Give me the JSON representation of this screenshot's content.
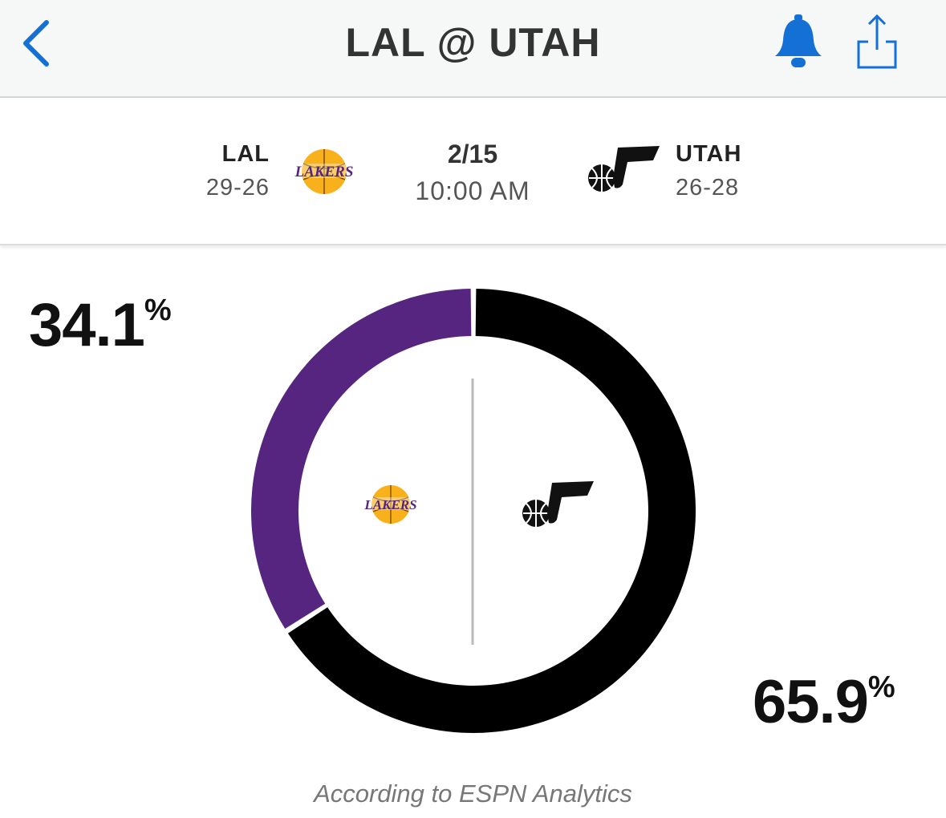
{
  "nav": {
    "title": "LAL @ UTAH",
    "accent_color": "#1570d6"
  },
  "game": {
    "date": "2/15",
    "time": "10:00 AM",
    "away": {
      "abbr": "LAL",
      "record": "29-26",
      "logo_icon": "lakers-logo"
    },
    "home": {
      "abbr": "UTAH",
      "record": "26-28",
      "logo_icon": "jazz-logo"
    }
  },
  "win_probability": {
    "away_display": "34.1",
    "home_display": "65.9",
    "percent_sign": "%",
    "footnote": "According to ESPN Analytics"
  },
  "chart_data": {
    "type": "pie",
    "categories": [
      "LAL",
      "UTAH"
    ],
    "values": [
      34.1,
      65.9
    ],
    "colors": [
      "#55257f",
      "#000000"
    ]
  }
}
